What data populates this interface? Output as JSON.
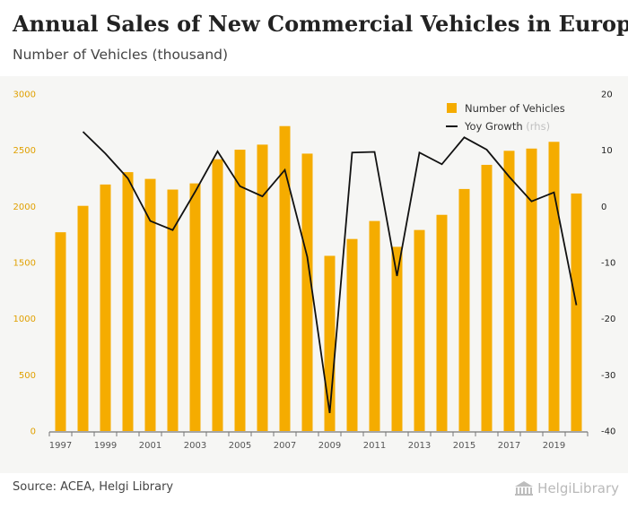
{
  "header": {
    "title": "Annual Sales of New Commercial Vehicles in Europe",
    "subtitle": "Number of Vehicles (thousand)"
  },
  "footer": {
    "source": "Source: ACEA, Helgi Library",
    "logo_text": "HelgiLibrary",
    "logo_icon": "helgi-library-building-icon"
  },
  "colors": {
    "bar": "#f5ac00",
    "line": "#111111",
    "left_axis_text": "#e0a000"
  },
  "chart_data": {
    "type": "bar",
    "categories": [
      1997,
      1998,
      1999,
      2000,
      2001,
      2002,
      2003,
      2004,
      2005,
      2006,
      2007,
      2008,
      2009,
      2010,
      2011,
      2012,
      2013,
      2014,
      2015,
      2016,
      2017,
      2018,
      2019,
      2020
    ],
    "x_tick_labels": [
      "1997",
      "1999",
      "2001",
      "2003",
      "2005",
      "2007",
      "2009",
      "2011",
      "2013",
      "2015",
      "2017",
      "2019"
    ],
    "ylim_left": [
      0,
      3000
    ],
    "y_ticks_left": [
      0,
      500,
      1000,
      1500,
      2000,
      2500,
      3000
    ],
    "ylim_right": [
      -40,
      20
    ],
    "y_ticks_right": [
      -40,
      -30,
      -20,
      -10,
      0,
      10,
      20
    ],
    "grid": false,
    "legend_position": "top-right",
    "series": [
      {
        "name": "Number of Vehicles",
        "type": "bar",
        "axis": "left",
        "values": [
          1770,
          2005,
          2195,
          2305,
          2245,
          2150,
          2205,
          2420,
          2505,
          2550,
          2715,
          2470,
          1560,
          1710,
          1870,
          1640,
          1790,
          1925,
          2155,
          2370,
          2495,
          2515,
          2575,
          2115
        ]
      },
      {
        "name": "Yoy Growth",
        "name_suffix": "(rhs)",
        "type": "line",
        "axis": "right",
        "values": [
          null,
          13.3,
          9.4,
          5.0,
          -2.6,
          -4.2,
          2.6,
          9.8,
          3.6,
          1.8,
          6.5,
          -9.0,
          -36.8,
          9.6,
          9.7,
          -12.4,
          9.6,
          7.5,
          12.3,
          10.1,
          5.3,
          0.9,
          2.5,
          -17.6
        ]
      }
    ]
  }
}
